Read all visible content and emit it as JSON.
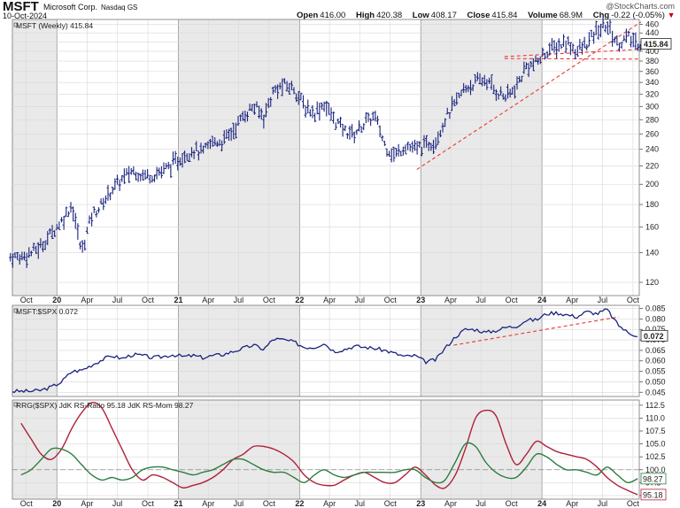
{
  "header": {
    "ticker": "MSFT",
    "company": "Microsoft Corp.",
    "exchange": "Nasdaq GS",
    "date": "10-Oct-2024",
    "credit": "@StockCharts.com",
    "quote": {
      "open_label": "Open",
      "open": "416.00",
      "high_label": "High",
      "high": "420.38",
      "low_label": "Low",
      "low": "408.17",
      "close_label": "Close",
      "close": "415.84",
      "volume_label": "Volume",
      "volume": "68.9M",
      "chg_label": "Chg",
      "chg": "-0.22 (-0.05%)"
    }
  },
  "colors": {
    "price": "#1a237e",
    "ratio_line": "#1a237e",
    "rs_ratio": "#b0203a",
    "rs_mom": "#2e7d40",
    "trendline": "#e53935",
    "gridlines": "#d8d8d8",
    "shade": "#e9e9e9"
  },
  "chart_data": [
    {
      "type": "line",
      "panel": "price",
      "label": "MSFT (Weekly) 415.84",
      "last_value_tag": "415.84",
      "x_tick_labels": [
        "Oct",
        "20",
        "Apr",
        "Jul",
        "Oct",
        "21",
        "Apr",
        "Jul",
        "Oct",
        "22",
        "Apr",
        "Jul",
        "Oct",
        "23",
        "Apr",
        "Jul",
        "Oct",
        "24",
        "Apr",
        "Jul",
        "Oct"
      ],
      "y_ticks": [
        "120",
        "140",
        "160",
        "180",
        "200",
        "220",
        "240",
        "260",
        "280",
        "300",
        "320",
        "340",
        "360",
        "380",
        "400",
        "420",
        "440",
        "460"
      ],
      "ylim": [
        112,
        472
      ],
      "scale": "log",
      "x": [
        "2019-09",
        "2019-10",
        "2019-11",
        "2019-12",
        "2020-01",
        "2020-02",
        "2020-03",
        "2020-04",
        "2020-05",
        "2020-06",
        "2020-07",
        "2020-08",
        "2020-09",
        "2020-10",
        "2020-11",
        "2020-12",
        "2021-01",
        "2021-02",
        "2021-03",
        "2021-04",
        "2021-05",
        "2021-06",
        "2021-07",
        "2021-08",
        "2021-09",
        "2021-10",
        "2021-11",
        "2021-12",
        "2022-01",
        "2022-02",
        "2022-03",
        "2022-04",
        "2022-05",
        "2022-06",
        "2022-07",
        "2022-08",
        "2022-09",
        "2022-10",
        "2022-11",
        "2022-12",
        "2023-01",
        "2023-02",
        "2023-03",
        "2023-04",
        "2023-05",
        "2023-06",
        "2023-07",
        "2023-08",
        "2023-09",
        "2023-10",
        "2023-11",
        "2023-12",
        "2024-01",
        "2024-02",
        "2024-03",
        "2024-04",
        "2024-05",
        "2024-06",
        "2024-07",
        "2024-08",
        "2024-09",
        "2024-10"
      ],
      "close": [
        137,
        140,
        145,
        155,
        165,
        180,
        140,
        170,
        180,
        195,
        205,
        215,
        210,
        210,
        215,
        222,
        232,
        240,
        235,
        250,
        250,
        265,
        285,
        300,
        285,
        325,
        335,
        330,
        300,
        290,
        305,
        280,
        265,
        260,
        275,
        285,
        245,
        232,
        245,
        240,
        245,
        252,
        280,
        305,
        330,
        340,
        345,
        325,
        315,
        330,
        370,
        375,
        400,
        410,
        420,
        400,
        415,
        445,
        460,
        415,
        430,
        416
      ]
    },
    {
      "type": "line",
      "panel": "ratio",
      "label": "MSFT:$SPX 0.072",
      "last_value_tag": "0.072",
      "y_ticks": [
        "0.045",
        "0.050",
        "0.055",
        "0.060",
        "0.065",
        "0.070",
        "0.075",
        "0.080",
        "0.085"
      ],
      "ylim": [
        0.043,
        0.0865
      ],
      "x": [
        "2019-09",
        "2019-10",
        "2019-11",
        "2019-12",
        "2020-01",
        "2020-02",
        "2020-03",
        "2020-04",
        "2020-05",
        "2020-06",
        "2020-07",
        "2020-08",
        "2020-09",
        "2020-10",
        "2020-11",
        "2020-12",
        "2021-01",
        "2021-02",
        "2021-03",
        "2021-04",
        "2021-05",
        "2021-06",
        "2021-07",
        "2021-08",
        "2021-09",
        "2021-10",
        "2021-11",
        "2021-12",
        "2022-01",
        "2022-02",
        "2022-03",
        "2022-04",
        "2022-05",
        "2022-06",
        "2022-07",
        "2022-08",
        "2022-09",
        "2022-10",
        "2022-11",
        "2022-12",
        "2023-01",
        "2023-02",
        "2023-03",
        "2023-04",
        "2023-05",
        "2023-06",
        "2023-07",
        "2023-08",
        "2023-09",
        "2023-10",
        "2023-11",
        "2023-12",
        "2024-01",
        "2024-02",
        "2024-03",
        "2024-04",
        "2024-05",
        "2024-06",
        "2024-07",
        "2024-08",
        "2024-09",
        "2024-10"
      ],
      "values": [
        0.0455,
        0.0455,
        0.046,
        0.0475,
        0.05,
        0.055,
        0.0555,
        0.058,
        0.0605,
        0.0625,
        0.061,
        0.063,
        0.0625,
        0.0615,
        0.062,
        0.063,
        0.062,
        0.0625,
        0.0615,
        0.0625,
        0.063,
        0.0645,
        0.066,
        0.0675,
        0.0655,
        0.0705,
        0.07,
        0.069,
        0.0665,
        0.0665,
        0.0685,
        0.0645,
        0.0655,
        0.067,
        0.0665,
        0.066,
        0.065,
        0.0635,
        0.062,
        0.0625,
        0.0595,
        0.0605,
        0.066,
        0.0715,
        0.075,
        0.075,
        0.0735,
        0.0745,
        0.076,
        0.0765,
        0.0795,
        0.0795,
        0.0825,
        0.083,
        0.082,
        0.081,
        0.0835,
        0.0825,
        0.0845,
        0.0775,
        0.0735,
        0.072
      ]
    },
    {
      "type": "line",
      "panel": "rrg",
      "label": "RRG($SPX) JdK RS-Ratio 95.18 JdK RS-Mom 98.27",
      "y_ticks": [
        "95.0",
        "97.5",
        "100.0",
        "102.5",
        "105.0",
        "107.5",
        "110.0",
        "112.5"
      ],
      "ylim": [
        94.3,
        113.5
      ],
      "reference_line": 100,
      "last_value_tags": [
        "98.27",
        "95.18"
      ],
      "x": [
        "2019-09",
        "2019-10",
        "2019-11",
        "2019-12",
        "2020-01",
        "2020-02",
        "2020-03",
        "2020-04",
        "2020-05",
        "2020-06",
        "2020-07",
        "2020-08",
        "2020-09",
        "2020-10",
        "2020-11",
        "2020-12",
        "2021-01",
        "2021-02",
        "2021-03",
        "2021-04",
        "2021-05",
        "2021-06",
        "2021-07",
        "2021-08",
        "2021-09",
        "2021-10",
        "2021-11",
        "2021-12",
        "2022-01",
        "2022-02",
        "2022-03",
        "2022-04",
        "2022-05",
        "2022-06",
        "2022-07",
        "2022-08",
        "2022-09",
        "2022-10",
        "2022-11",
        "2022-12",
        "2023-01",
        "2023-02",
        "2023-03",
        "2023-04",
        "2023-05",
        "2023-06",
        "2023-07",
        "2023-08",
        "2023-09",
        "2023-10",
        "2023-11",
        "2023-12",
        "2024-01",
        "2024-02",
        "2024-03",
        "2024-04",
        "2024-05",
        "2024-06",
        "2024-07",
        "2024-08",
        "2024-09",
        "2024-10"
      ],
      "series": [
        {
          "name": "JdK RS-Ratio",
          "values": [
            109,
            106,
            103,
            102,
            104,
            108,
            111,
            113,
            112,
            108,
            104,
            100,
            98,
            99,
            98.5,
            97.5,
            96.5,
            97,
            97.5,
            98.5,
            100,
            102,
            103,
            104.5,
            104.5,
            104,
            103,
            101.5,
            99,
            97.5,
            97,
            97,
            98,
            99,
            99.5,
            98.5,
            97.5,
            97.5,
            99,
            100.5,
            99,
            97,
            96.5,
            99,
            104,
            110,
            111.5,
            110.5,
            105,
            101,
            103,
            105.5,
            104.5,
            103.5,
            103,
            102.5,
            102,
            100.5,
            98.5,
            97,
            96,
            95.18
          ]
        },
        {
          "name": "JdK RS-Mom",
          "values": [
            99,
            100,
            102,
            104,
            104,
            103,
            101,
            99,
            98,
            98.5,
            98,
            98.5,
            100,
            100.5,
            100.5,
            100,
            99.5,
            99,
            99.5,
            100,
            101,
            102,
            102,
            101,
            100,
            99.5,
            99.5,
            98.5,
            97.5,
            99,
            100,
            99,
            98.5,
            99,
            99.5,
            99.5,
            99.5,
            99.5,
            100,
            100,
            98.5,
            97.5,
            98,
            101.5,
            105,
            104.5,
            101.5,
            99.5,
            98.5,
            98.5,
            100.5,
            103,
            102.5,
            101,
            100,
            100,
            99.5,
            99,
            100.5,
            99,
            97.5,
            98.27
          ]
        }
      ]
    }
  ]
}
